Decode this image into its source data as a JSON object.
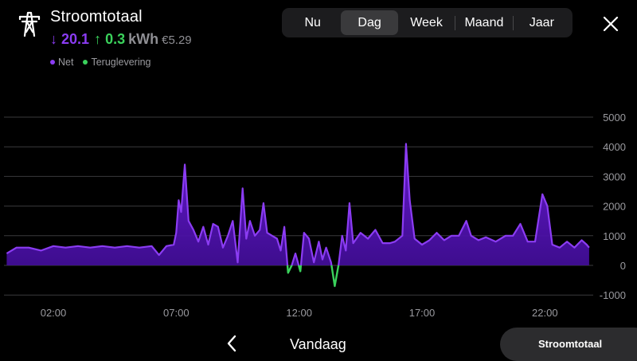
{
  "header": {
    "icon": "power-pylon-icon",
    "title": "Stroomtotaal",
    "consumption": "20.1",
    "return": "0.3",
    "unit": "kWh",
    "cost": "€5.29"
  },
  "legend": [
    {
      "label": "Net",
      "color": "#8b3cf3"
    },
    {
      "label": "Teruglevering",
      "color": "#3ad15b"
    }
  ],
  "tabs": [
    {
      "label": "Nu",
      "active": false
    },
    {
      "label": "Dag",
      "active": true
    },
    {
      "label": "Week",
      "active": false
    },
    {
      "label": "Maand",
      "active": false
    },
    {
      "label": "Jaar",
      "active": false
    }
  ],
  "footer": {
    "prev_icon": "chevron-left-icon",
    "date_label": "Vandaag",
    "pill_label": "Stroomtotaal"
  },
  "colors": {
    "net": "#8b3cf3",
    "return": "#3ad15b",
    "background": "#000000"
  },
  "chart_data": {
    "type": "area",
    "ylim": [
      -1000,
      5000
    ],
    "y_ticks": [
      5000,
      4000,
      3000,
      2000,
      1000,
      0,
      -1000
    ],
    "x_tick_labels": [
      {
        "hour": 2,
        "label": "02:00"
      },
      {
        "hour": 7,
        "label": "07:00"
      },
      {
        "hour": 12,
        "label": "12:00"
      },
      {
        "hour": 17,
        "label": "17:00"
      },
      {
        "hour": 22,
        "label": "22:00"
      }
    ],
    "xlim": [
      0.1,
      24.2
    ],
    "series": [
      {
        "name": "Net",
        "color": "#8b3cf3",
        "points": [
          [
            0.1,
            400
          ],
          [
            0.5,
            600
          ],
          [
            1.0,
            600
          ],
          [
            1.5,
            500
          ],
          [
            2.0,
            650
          ],
          [
            2.5,
            600
          ],
          [
            3.0,
            650
          ],
          [
            3.5,
            600
          ],
          [
            4.0,
            650
          ],
          [
            4.5,
            600
          ],
          [
            5.0,
            650
          ],
          [
            5.5,
            600
          ],
          [
            6.0,
            650
          ],
          [
            6.3,
            350
          ],
          [
            6.6,
            650
          ],
          [
            6.9,
            700
          ],
          [
            7.0,
            1100
          ],
          [
            7.1,
            2200
          ],
          [
            7.2,
            1800
          ],
          [
            7.35,
            3400
          ],
          [
            7.5,
            1500
          ],
          [
            7.7,
            1200
          ],
          [
            7.9,
            800
          ],
          [
            8.1,
            1300
          ],
          [
            8.3,
            700
          ],
          [
            8.5,
            1400
          ],
          [
            8.7,
            1300
          ],
          [
            8.9,
            600
          ],
          [
            9.1,
            1000
          ],
          [
            9.3,
            1500
          ],
          [
            9.5,
            100
          ],
          [
            9.7,
            2600
          ],
          [
            9.85,
            900
          ],
          [
            10.0,
            1500
          ],
          [
            10.2,
            1000
          ],
          [
            10.4,
            1200
          ],
          [
            10.55,
            2100
          ],
          [
            10.7,
            1100
          ],
          [
            10.9,
            1000
          ],
          [
            11.1,
            900
          ],
          [
            11.25,
            500
          ],
          [
            11.4,
            1300
          ],
          [
            11.55,
            -250
          ],
          [
            11.7,
            0
          ],
          [
            11.85,
            400
          ],
          [
            12.05,
            -200
          ],
          [
            12.2,
            1100
          ],
          [
            12.4,
            900
          ],
          [
            12.6,
            100
          ],
          [
            12.8,
            800
          ],
          [
            12.95,
            200
          ],
          [
            13.1,
            600
          ],
          [
            13.3,
            100
          ],
          [
            13.45,
            -700
          ],
          [
            13.6,
            0
          ],
          [
            13.75,
            1000
          ],
          [
            13.9,
            500
          ],
          [
            14.05,
            2100
          ],
          [
            14.2,
            750
          ],
          [
            14.5,
            1100
          ],
          [
            14.8,
            900
          ],
          [
            15.1,
            1200
          ],
          [
            15.4,
            750
          ],
          [
            15.7,
            750
          ],
          [
            15.9,
            800
          ],
          [
            16.2,
            1000
          ],
          [
            16.35,
            4100
          ],
          [
            16.5,
            2200
          ],
          [
            16.7,
            900
          ],
          [
            17.0,
            700
          ],
          [
            17.3,
            850
          ],
          [
            17.6,
            1100
          ],
          [
            17.9,
            850
          ],
          [
            18.2,
            1000
          ],
          [
            18.5,
            1000
          ],
          [
            18.8,
            1500
          ],
          [
            19.0,
            1000
          ],
          [
            19.3,
            850
          ],
          [
            19.6,
            950
          ],
          [
            20.0,
            800
          ],
          [
            20.4,
            1000
          ],
          [
            20.7,
            1000
          ],
          [
            21.0,
            1400
          ],
          [
            21.3,
            800
          ],
          [
            21.6,
            800
          ],
          [
            21.9,
            2400
          ],
          [
            22.1,
            2000
          ],
          [
            22.3,
            700
          ],
          [
            22.6,
            600
          ],
          [
            22.9,
            800
          ],
          [
            23.2,
            600
          ],
          [
            23.5,
            850
          ],
          [
            23.7,
            700
          ],
          [
            23.8,
            600
          ]
        ]
      }
    ]
  }
}
